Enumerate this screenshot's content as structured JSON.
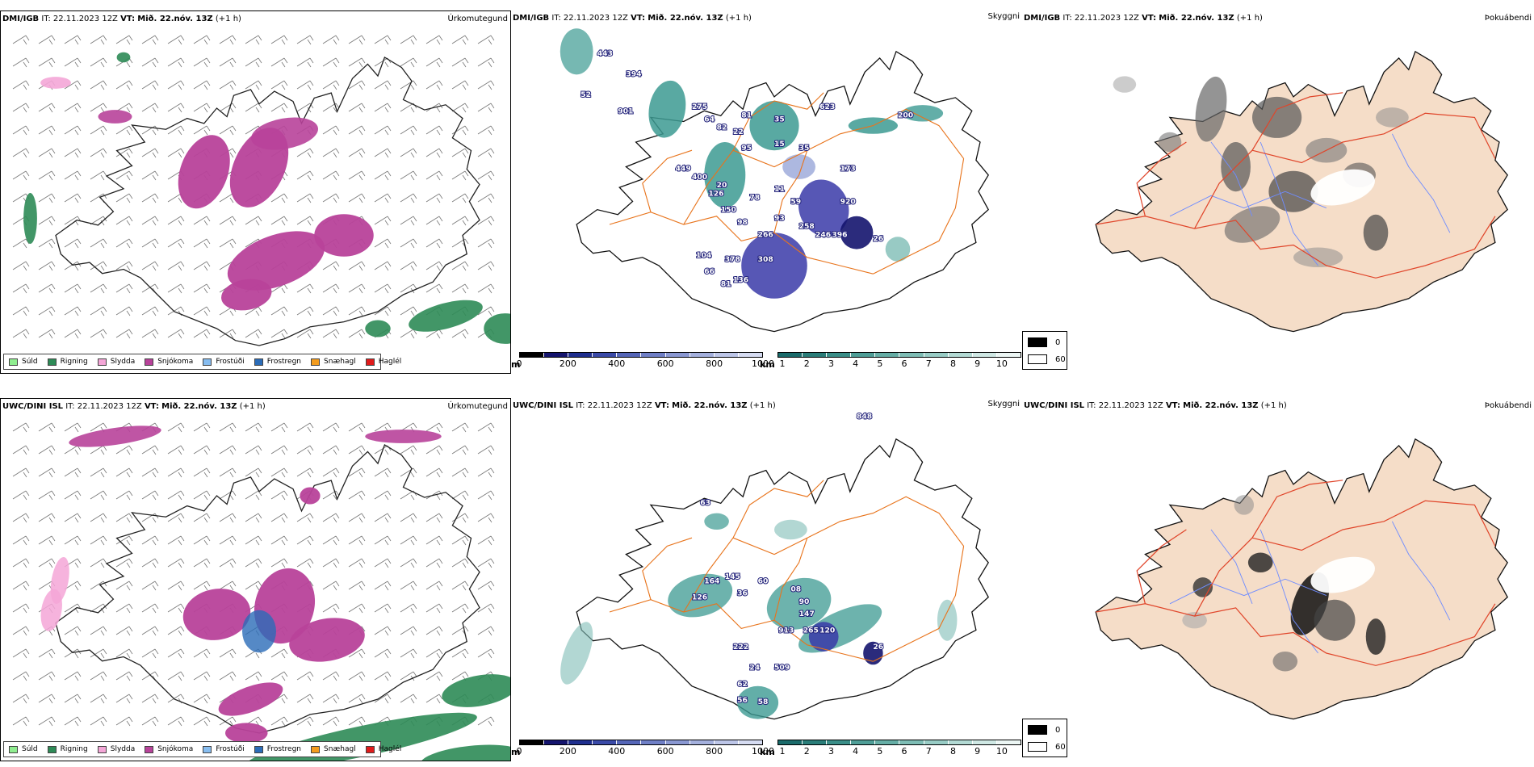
{
  "rows": [
    {
      "id": "dmi",
      "precip_type": {
        "model": "DMI/IGB",
        "it_label": "IT:",
        "it_value": "22.11.2023 12Z",
        "vt_label": "VT:",
        "vt_value": "Mið. 22.nóv. 13Z",
        "lead": "(+1 h)",
        "field": "Úrkomutegund"
      },
      "visibility": {
        "model": "DMI/IGB",
        "it_label": "IT:",
        "it_value": "22.11.2023 12Z",
        "vt_label": "VT:",
        "vt_value": "Mið. 22.nóv. 13Z",
        "lead": "(+1 h)",
        "field": "Skyggni",
        "numbers": [
          "443",
          "394",
          "52",
          "901",
          "275",
          "64",
          "81",
          "82",
          "35",
          "623",
          "200",
          "22",
          "95",
          "15",
          "35",
          "173",
          "449",
          "400",
          "20",
          "126",
          "78",
          "11",
          "59",
          "920",
          "150",
          "98",
          "93",
          "258",
          "266",
          "246",
          "396",
          "26",
          "104",
          "378",
          "308",
          "66",
          "81",
          "136"
        ]
      },
      "fog": {
        "model": "DMI/IGB",
        "it_label": "IT:",
        "it_value": "22.11.2023 12Z",
        "vt_label": "VT:",
        "vt_value": "Mið. 22.nóv. 13Z",
        "lead": "(+1 h)",
        "field": "Þokuábendi"
      }
    },
    {
      "id": "uwc",
      "precip_type": {
        "model": "UWC/DINI ISL",
        "it_label": "IT:",
        "it_value": "22.11.2023 12Z",
        "vt_label": "VT:",
        "vt_value": "Mið. 22.nóv. 13Z",
        "lead": "(+1 h)",
        "field": "Úrkomutegund"
      },
      "visibility": {
        "model": "UWC/DINI ISL",
        "it_label": "IT:",
        "it_value": "22.11.2023 12Z",
        "vt_label": "VT:",
        "vt_value": "Mið. 22.nóv. 13Z",
        "lead": "(+1 h)",
        "field": "Skyggni",
        "numbers": [
          "848",
          "63",
          "164",
          "145",
          "36",
          "60",
          "08",
          "126",
          "90",
          "147",
          "913",
          "265",
          "120",
          "26",
          "222",
          "24",
          "509",
          "62",
          "56",
          "58"
        ]
      },
      "fog": {
        "model": "UWC/DINI ISL",
        "it_label": "IT:",
        "it_value": "22.11.2023 12Z",
        "vt_label": "VT:",
        "vt_value": "Mið. 22.nóv. 13Z",
        "lead": "(+1 h)",
        "field": "Þokuábendi"
      }
    }
  ],
  "precip_legend": [
    {
      "label": "Súld",
      "color": "#90ee90"
    },
    {
      "label": "Rigning",
      "color": "#2e8b57"
    },
    {
      "label": "Slydda",
      "color": "#f4a6d7"
    },
    {
      "label": "Snjókoma",
      "color": "#b8429a"
    },
    {
      "label": "Frostúði",
      "color": "#87bdf0"
    },
    {
      "label": "Frostregn",
      "color": "#2b6cb8"
    },
    {
      "label": "Snæhagl",
      "color": "#f39c1e"
    },
    {
      "label": "Haglél",
      "color": "#e01b1b"
    }
  ],
  "vis_colorbar_m": {
    "unit": "m",
    "ticks": [
      "0",
      "200",
      "400",
      "600",
      "800",
      "1000"
    ],
    "colors": [
      "#000000",
      "#14146e",
      "#1f2f8f",
      "#3a4aa8",
      "#5566b8",
      "#6f7fc6",
      "#8a98d2",
      "#a4b0dd",
      "#bdc6e8",
      "#d6dcf2"
    ]
  },
  "vis_colorbar_km": {
    "unit": "km",
    "ticks": [
      "1",
      "2",
      "3",
      "4",
      "5",
      "6",
      "7",
      "8",
      "9",
      "10"
    ],
    "colors": [
      "#1a6b6b",
      "#2a7d79",
      "#3a8e88",
      "#4f9e97",
      "#66aea6",
      "#7ebdb5",
      "#98ccc5",
      "#b3dad4",
      "#cfe8e4",
      "#ecf6f4"
    ]
  },
  "fog_legend": [
    {
      "label": "0",
      "color": "#000000"
    },
    {
      "label": "60",
      "color": "#ffffff"
    }
  ],
  "colors": {
    "land": "#f5ddc8",
    "road": "#e8741c",
    "river": "#6f8cff",
    "coast": "#111111"
  }
}
